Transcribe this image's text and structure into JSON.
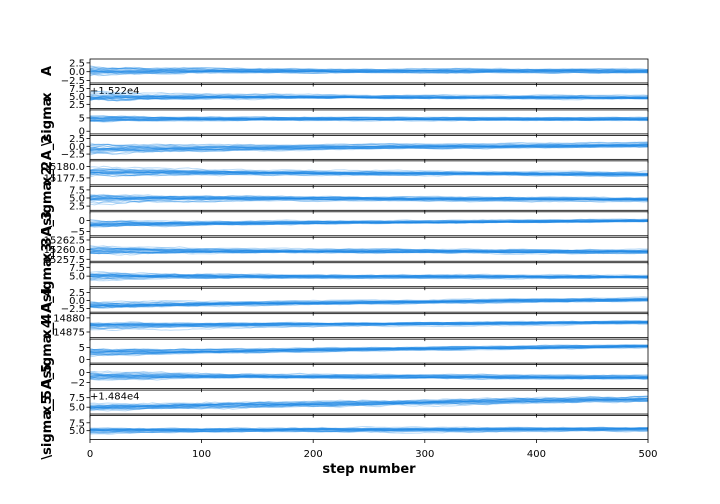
{
  "chart_data": {
    "type": "line",
    "chart_kind": "MCMC walker trace plot",
    "xlabel": "step number",
    "xlim": [
      0,
      500
    ],
    "xticks": [
      0,
      100,
      200,
      300,
      400,
      500
    ],
    "walker_count": 24,
    "line_color": "#1e88e5",
    "panels": [
      {
        "ylabel": "A",
        "ylim": [
          -3.2,
          3.6
        ],
        "yticks": [
          -2.5,
          0.0,
          2.5
        ],
        "ytick_labels": [
          "−2.5",
          "0.0",
          "2.5"
        ],
        "offset": "+1.522e4",
        "center": 0.2,
        "center_end": 0.2,
        "spread_start": 2.2,
        "spread_end": 0.9
      },
      {
        "ylabel": "x",
        "ylim": [
          1.2,
          8.8
        ],
        "yticks": [
          2.5,
          5.0,
          7.5
        ],
        "ytick_labels": [
          "2.5",
          "5.0",
          "7.5"
        ],
        "center": 5.2,
        "center_end": 4.8,
        "spread_start": 2.6,
        "spread_end": 0.9
      },
      {
        "ylabel": "\\sigma",
        "ylim": [
          -1.0,
          8.0
        ],
        "yticks": [
          0,
          5
        ],
        "ytick_labels": [
          "0",
          "5"
        ],
        "center": 4.8,
        "center_end": 4.6,
        "spread_start": 2.0,
        "spread_end": 1.0
      },
      {
        "ylabel": "A_2",
        "ylim": [
          -4.2,
          3.5
        ],
        "yticks": [
          -2.5,
          0.0,
          2.5
        ],
        "ytick_labels": [
          "−2.5",
          "0.0",
          "2.5"
        ],
        "center": -0.8,
        "center_end": 0.5,
        "spread_start": 2.4,
        "spread_end": 1.0
      },
      {
        "ylabel": "x_2",
        "ylim": [
          15176.0,
          15181.2
        ],
        "yticks": [
          15177.5,
          15180.0
        ],
        "ytick_labels": [
          "15177.5",
          "15180.0"
        ],
        "center": 15178.8,
        "center_end": 15178.3,
        "spread_start": 1.6,
        "spread_end": 0.7
      },
      {
        "ylabel": "\\sigma_2",
        "ylim": [
          1.2,
          8.6
        ],
        "yticks": [
          2.5,
          5.0,
          7.5
        ],
        "ytick_labels": [
          "2.5",
          "5.0",
          "7.5"
        ],
        "center": 5.0,
        "center_end": 4.6,
        "spread_start": 2.4,
        "spread_end": 1.0
      },
      {
        "ylabel": "A_3",
        "ylim": [
          -7.0,
          4.0
        ],
        "yticks": [
          -5,
          0
        ],
        "ytick_labels": [
          "−5",
          "0"
        ],
        "center": -1.5,
        "center_end": 0.0,
        "spread_start": 3.0,
        "spread_end": 1.2
      },
      {
        "ylabel": "x_3",
        "ylim": [
          15257.0,
          15263.2
        ],
        "yticks": [
          15257.5,
          15260.0,
          15262.5
        ],
        "ytick_labels": [
          "15257.5",
          "15260.0",
          "15262.5"
        ],
        "center": 15259.6,
        "center_end": 15259.4,
        "spread_start": 1.8,
        "spread_end": 0.8
      },
      {
        "ylabel": "\\sigma_3",
        "ylim": [
          2.0,
          8.8
        ],
        "yticks": [
          5.0,
          7.5
        ],
        "ytick_labels": [
          "5.0",
          "7.5"
        ],
        "center": 5.0,
        "center_end": 4.8,
        "spread_start": 2.0,
        "spread_end": 0.8
      },
      {
        "ylabel": "A_4",
        "ylim": [
          -3.6,
          3.8
        ],
        "yticks": [
          -2.5,
          0.0,
          2.5
        ],
        "ytick_labels": [
          "−2.5",
          "0.0",
          "2.5"
        ],
        "center": -1.5,
        "center_end": 0.3,
        "spread_start": 2.0,
        "spread_end": 0.9
      },
      {
        "ylabel": "x_4",
        "ylim": [
          14873.0,
          14881.5
        ],
        "yticks": [
          14875,
          14880
        ],
        "ytick_labels": [
          "14875",
          "14880"
        ],
        "center": 14877.2,
        "center_end": 14878.4,
        "spread_start": 2.2,
        "spread_end": 1.0
      },
      {
        "ylabel": "\\sigma_4",
        "ylim": [
          -1.5,
          8.5
        ],
        "yticks": [
          0,
          5
        ],
        "ytick_labels": [
          "0",
          "5"
        ],
        "center": 3.0,
        "center_end": 5.6,
        "spread_start": 2.6,
        "spread_end": 1.2
      },
      {
        "ylabel": "A_5",
        "ylim": [
          -3.2,
          1.6
        ],
        "yticks": [
          -2,
          0
        ],
        "ytick_labels": [
          "−2",
          "0"
        ],
        "offset": "+1.484e4",
        "center": -0.6,
        "center_end": -0.9,
        "spread_start": 1.4,
        "spread_end": 0.6
      },
      {
        "ylabel": "x_5",
        "ylim": [
          3.2,
          9.5
        ],
        "yticks": [
          5.0,
          7.5
        ],
        "ytick_labels": [
          "5.0",
          "7.5"
        ],
        "center": 5.0,
        "center_end": 7.2,
        "spread_start": 1.4,
        "spread_end": 1.2
      },
      {
        "ylabel": "\\sigma_5",
        "ylim": [
          2.2,
          9.8
        ],
        "yticks": [
          5.0,
          7.5
        ],
        "ytick_labels": [
          "5.0",
          "7.5"
        ],
        "center": 5.2,
        "center_end": 5.6,
        "spread_start": 1.6,
        "spread_end": 1.0
      }
    ]
  }
}
